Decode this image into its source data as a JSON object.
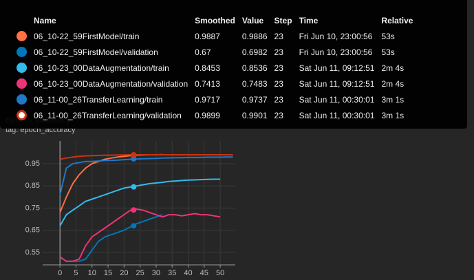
{
  "chart_data": {
    "type": "line",
    "title": "epoch_accuracy",
    "subtitle": "tag: epoch_accuracy",
    "x": [
      0,
      2,
      4,
      6,
      8,
      10,
      12,
      14,
      16,
      18,
      20,
      22,
      24,
      26,
      28,
      30,
      32,
      34,
      36,
      38,
      40,
      42,
      44,
      46,
      48,
      50,
      52,
      54
    ],
    "series": [
      {
        "name": "06_10-22_59FirstModel/train",
        "color": "#ff7043",
        "values": [
          0.73,
          0.8,
          0.86,
          0.9,
          0.93,
          0.95,
          0.96,
          0.97,
          0.975,
          0.98,
          0.983,
          0.986,
          0.988,
          0.989,
          0.99,
          0.99,
          0.991,
          null,
          null,
          null,
          null,
          null,
          null,
          null,
          null,
          null,
          null,
          null
        ]
      },
      {
        "name": "06_10-22_59FirstModel/validation",
        "color": "#0077bb",
        "values": [
          0.53,
          0.51,
          0.51,
          0.51,
          0.52,
          0.56,
          0.6,
          0.62,
          0.63,
          0.64,
          0.65,
          0.665,
          0.68,
          0.69,
          0.7,
          0.71,
          0.72,
          null,
          null,
          null,
          null,
          null,
          null,
          null,
          null,
          null,
          null,
          null
        ]
      },
      {
        "name": "06_10-23_00DataAugmentation/train",
        "color": "#33bbee",
        "values": [
          0.67,
          0.72,
          0.74,
          0.76,
          0.78,
          0.79,
          0.8,
          0.81,
          0.82,
          0.83,
          0.84,
          0.845,
          0.85,
          0.855,
          0.86,
          0.863,
          0.866,
          0.87,
          0.872,
          0.874,
          0.876,
          0.877,
          0.878,
          0.879,
          0.88,
          0.88,
          null,
          null
        ]
      },
      {
        "name": "06_10-23_00DataAugmentation/validation",
        "color": "#ee3377",
        "values": [
          0.53,
          0.51,
          0.51,
          0.52,
          0.58,
          0.62,
          0.64,
          0.66,
          0.68,
          0.7,
          0.72,
          0.74,
          0.745,
          0.74,
          0.73,
          0.72,
          0.71,
          0.72,
          0.72,
          0.715,
          0.72,
          0.725,
          0.72,
          0.72,
          0.715,
          0.71,
          null,
          null
        ]
      },
      {
        "name": "06_11-00_26TransferLearning/train",
        "color": "#1f78c8",
        "values": [
          0.81,
          0.93,
          0.95,
          0.955,
          0.96,
          0.96,
          0.962,
          0.964,
          0.965,
          0.966,
          0.968,
          0.97,
          0.971,
          0.972,
          0.973,
          0.974,
          0.975,
          0.976,
          0.977,
          0.977,
          0.978,
          0.978,
          0.978,
          0.979,
          0.979,
          0.979,
          0.98,
          0.98
        ]
      },
      {
        "name": "06_11-00_26TransferLearning/validation",
        "color": "#cc3311",
        "values": [
          0.97,
          0.975,
          0.98,
          0.983,
          0.985,
          0.986,
          0.987,
          0.988,
          0.988,
          0.989,
          0.989,
          0.99,
          0.99,
          0.99,
          0.99,
          0.99,
          0.99,
          0.99,
          0.99,
          0.99,
          0.99,
          0.99,
          0.99,
          0.99,
          0.99,
          0.99,
          0.99,
          0.99
        ]
      }
    ],
    "xlim": [
      -5.4,
      54.7
    ],
    "ylim": [
      0.494,
      1.052
    ],
    "xticks": [
      0,
      5,
      10,
      15,
      20,
      25,
      30,
      35,
      40,
      45,
      50
    ],
    "yticks": [
      0.55,
      0.65,
      0.75,
      0.85,
      0.95
    ],
    "grid": true
  },
  "tooltip": {
    "headers": [
      "Name",
      "Smoothed",
      "Value",
      "Step",
      "Time",
      "Relative"
    ],
    "rows": [
      {
        "smoothed": 0.9887,
        "value": 0.9886,
        "step": 23,
        "time": "Fri Jun 10, 23:00:56",
        "relative": "53s"
      },
      {
        "smoothed": 0.67,
        "value": 0.6982,
        "step": 23,
        "time": "Fri Jun 10, 23:00:56",
        "relative": "53s"
      },
      {
        "smoothed": 0.8453,
        "value": 0.8536,
        "step": 23,
        "time": "Sat Jun 11, 09:12:51",
        "relative": "2m 4s"
      },
      {
        "smoothed": 0.7413,
        "value": 0.7483,
        "step": 23,
        "time": "Sat Jun 11, 09:12:51",
        "relative": "2m 4s"
      },
      {
        "smoothed": 0.9717,
        "value": 0.9737,
        "step": 23,
        "time": "Sat Jun 11, 00:30:01",
        "relative": "3m 1s"
      },
      {
        "smoothed": 0.9899,
        "value": 0.9901,
        "step": 23,
        "time": "Sat Jun 11, 00:30:01",
        "relative": "3m 1s"
      }
    ]
  }
}
